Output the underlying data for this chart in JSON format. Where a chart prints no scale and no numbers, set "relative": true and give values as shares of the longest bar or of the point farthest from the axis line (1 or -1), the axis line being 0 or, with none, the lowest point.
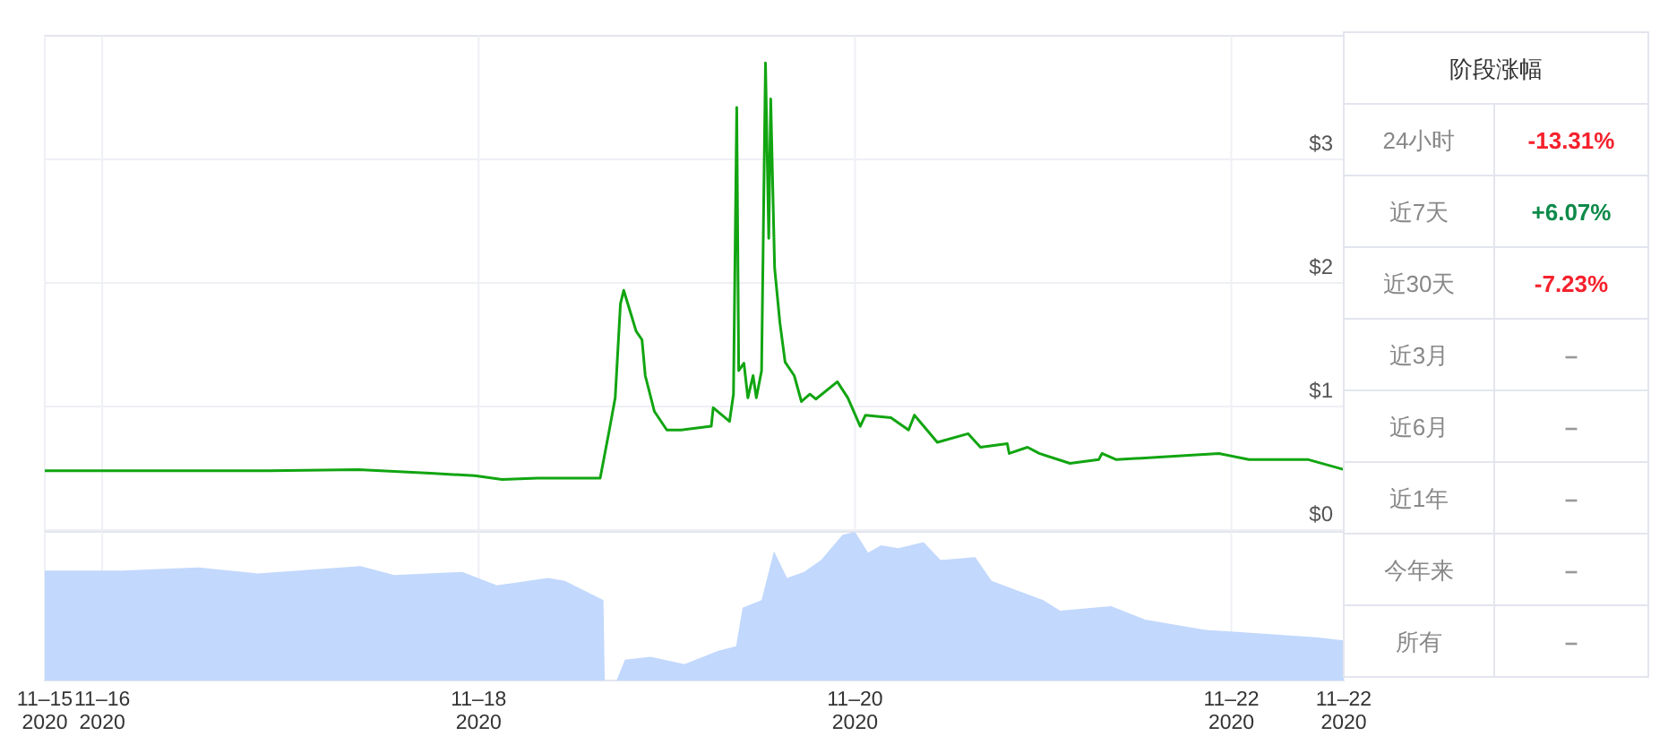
{
  "chart_data": [
    {
      "type": "line",
      "xlim": [
        "2020-11-15T16:40",
        "2020-11-22T14:20"
      ],
      "ylim": [
        0,
        4
      ],
      "yticks": [
        {
          "value": 0,
          "label": "$0"
        },
        {
          "value": 1,
          "label": "$1"
        },
        {
          "value": 2,
          "label": "$2"
        },
        {
          "value": 3,
          "label": "$3"
        }
      ],
      "xticks": [
        {
          "value": "2020-11-15T16:40",
          "label": null
        },
        {
          "value": "2020-11-16",
          "label": null
        },
        {
          "value": "2020-11-18",
          "label": null
        },
        {
          "value": "2020-11-20",
          "label": null
        },
        {
          "value": "2020-11-22",
          "label": null
        },
        {
          "value": "2020-11-22T14:20",
          "label": null
        }
      ],
      "grid": true,
      "tick_labels": "y",
      "series": [
        {
          "color": "#11a511",
          "x": [
            "2020-11-15T16:40",
            "2020-11-16T10:00",
            "2020-11-16T21:15",
            "2020-11-17T08:40",
            "2020-11-17T17:50",
            "2020-11-17T23:30",
            "2020-11-18T03:00",
            "2020-11-18T07:30",
            "2020-11-18T15:30",
            "2020-11-18T16:40",
            "2020-11-18T17:25",
            "2020-11-18T18:05",
            "2020-11-18T18:30",
            "2020-11-18T19:25",
            "2020-11-18T20:05",
            "2020-11-18T20:50",
            "2020-11-18T21:15",
            "2020-11-18T22:25",
            "2020-11-19T00:00",
            "2020-11-19T01:50",
            "2020-11-19T05:40",
            "2020-11-19T05:55",
            "2020-11-19T08:00",
            "2020-11-19T08:30",
            "2020-11-19T08:55",
            "2020-11-19T09:10",
            "2020-11-19T09:50",
            "2020-11-19T10:20",
            "2020-11-19T11:00",
            "2020-11-19T11:25",
            "2020-11-19T12:05",
            "2020-11-19T12:35",
            "2020-11-19T13:00",
            "2020-11-19T13:15",
            "2020-11-19T13:45",
            "2020-11-19T14:25",
            "2020-11-19T15:05",
            "2020-11-19T16:15",
            "2020-11-19T17:10",
            "2020-11-19T18:15",
            "2020-11-19T19:00",
            "2020-11-19T21:45",
            "2020-11-19T23:05",
            "2020-11-20T00:40",
            "2020-11-20T01:20",
            "2020-11-20T04:35",
            "2020-11-20T06:50",
            "2020-11-20T07:35",
            "2020-11-20T10:30",
            "2020-11-20T14:25",
            "2020-11-20T16:00",
            "2020-11-20T19:25",
            "2020-11-20T19:40",
            "2020-11-20T22:00",
            "2020-11-20T23:30",
            "2020-11-21T03:25",
            "2020-11-21T07:05",
            "2020-11-21T07:30",
            "2020-11-21T09:20",
            "2020-11-21T14:50",
            "2020-11-21T22:25",
            "2020-11-22T02:15",
            "2020-11-22T09:50",
            "2020-11-22T14:20"
          ],
          "values": [
            0.48,
            0.48,
            0.48,
            0.49,
            0.46,
            0.44,
            0.41,
            0.42,
            0.42,
            0.81,
            1.07,
            1.83,
            1.94,
            1.75,
            1.61,
            1.54,
            1.25,
            0.96,
            0.81,
            0.81,
            0.84,
            0.99,
            0.88,
            1.1,
            3.42,
            1.29,
            1.35,
            1.07,
            1.25,
            1.07,
            1.29,
            3.78,
            2.36,
            3.49,
            2.12,
            1.68,
            1.36,
            1.25,
            1.04,
            1.1,
            1.06,
            1.2,
            1.07,
            0.84,
            0.93,
            0.91,
            0.81,
            0.93,
            0.71,
            0.78,
            0.67,
            0.7,
            0.62,
            0.67,
            0.62,
            0.54,
            0.57,
            0.62,
            0.57,
            0.59,
            0.62,
            0.57,
            0.57,
            0.49
          ]
        }
      ]
    },
    {
      "type": "area",
      "relative": true,
      "xlim": [
        "2020-11-15T16:40",
        "2020-11-22T14:20"
      ],
      "xticks": [
        {
          "value": "2020-11-15T16:40",
          "label": "11–15\n2020"
        },
        {
          "value": "2020-11-16",
          "label": "11–16\n2020"
        },
        {
          "value": "2020-11-18",
          "label": "11–18\n2020"
        },
        {
          "value": "2020-11-20",
          "label": "11–20\n2020"
        },
        {
          "value": "2020-11-22",
          "label": "11–22\n2020"
        },
        {
          "value": "2020-11-22T14:20",
          "label": "11–22\n2020"
        }
      ],
      "grid": "x",
      "tick_labels": "x",
      "series": [
        {
          "color": "#c2d8fd",
          "x": [
            "2020-11-15T16:40",
            "2020-11-16T02:25",
            "2020-11-16T12:15",
            "2020-11-16T19:50",
            "2020-11-17T08:55",
            "2020-11-17T13:15",
            "2020-11-17T21:55",
            "2020-11-18T02:20",
            "2020-11-18T08:50",
            "2020-11-18T11:00",
            "2020-11-18T15:55",
            "2020-11-18T16:05",
            "2020-11-18T17:35",
            "2020-11-18T18:40",
            "2020-11-18T21:55",
            "2020-11-19T02:15",
            "2020-11-19T06:35",
            "2020-11-19T08:50",
            "2020-11-19T09:40",
            "2020-11-19T12:05",
            "2020-11-19T13:40",
            "2020-11-19T15:20",
            "2020-11-19T17:30",
            "2020-11-19T19:40",
            "2020-11-19T22:25",
            "2020-11-20T00:00",
            "2020-11-20T01:40",
            "2020-11-20T03:20",
            "2020-11-20T05:30",
            "2020-11-20T08:45",
            "2020-11-20T10:55",
            "2020-11-20T15:20",
            "2020-11-20T17:25",
            "2020-11-21T00:00",
            "2020-11-21T02:10",
            "2020-11-21T08:40",
            "2020-11-21T13:00",
            "2020-11-21T20:40",
            "2020-11-21T23:55",
            "2020-11-22T10:50",
            "2020-11-22T14:20"
          ],
          "values": [
            0.74,
            0.74,
            0.76,
            0.72,
            0.77,
            0.71,
            0.73,
            0.64,
            0.69,
            0.67,
            0.54,
            0,
            0,
            0.14,
            0.16,
            0.11,
            0.2,
            0.23,
            0.49,
            0.54,
            0.87,
            0.69,
            0.73,
            0.81,
            0.98,
            1,
            0.86,
            0.91,
            0.89,
            0.93,
            0.81,
            0.83,
            0.67,
            0.54,
            0.47,
            0.5,
            0.41,
            0.34,
            0.33,
            0.29,
            0.27
          ]
        }
      ]
    },
    {
      "type": "other",
      "title": "阶段涨幅",
      "categories": [
        "24小时",
        "近7天",
        "近30天",
        "近3月",
        "近6月",
        "近1年",
        "今年来",
        "所有"
      ],
      "value_labels": [
        "-13.31%",
        "+6.07%",
        "-7.23%",
        "–",
        "–",
        "–",
        "–",
        "–"
      ],
      "colors": [
        "#f5222d",
        "#0e8a4a",
        "#f5222d",
        "#999999",
        "#999999",
        "#999999",
        "#999999",
        "#999999"
      ]
    }
  ]
}
